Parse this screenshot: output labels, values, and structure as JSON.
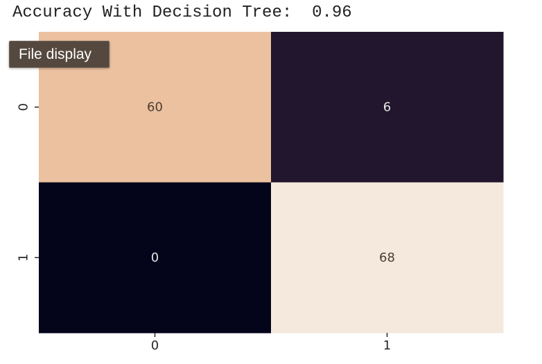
{
  "output": {
    "text": "Accuracy With Decision Tree:  0.96"
  },
  "tooltip": {
    "label": "File display"
  },
  "chart_data": {
    "type": "heatmap",
    "title": "",
    "xlabel": "",
    "ylabel": "",
    "x_tick_labels": [
      "0",
      "1"
    ],
    "y_tick_labels": [
      "0",
      "1"
    ],
    "values": [
      [
        60,
        6
      ],
      [
        0,
        68
      ]
    ],
    "annotations": true,
    "colorbar": false,
    "colormap": "rocket",
    "cell_colors": [
      [
        "#ecc19f",
        "#21162d"
      ],
      [
        "#04051b",
        "#f5e9de"
      ]
    ],
    "text_colors": [
      [
        "#4a3d33",
        "#e6e6e6"
      ],
      [
        "#e6e6e6",
        "#4a3d33"
      ]
    ],
    "grid": false
  }
}
